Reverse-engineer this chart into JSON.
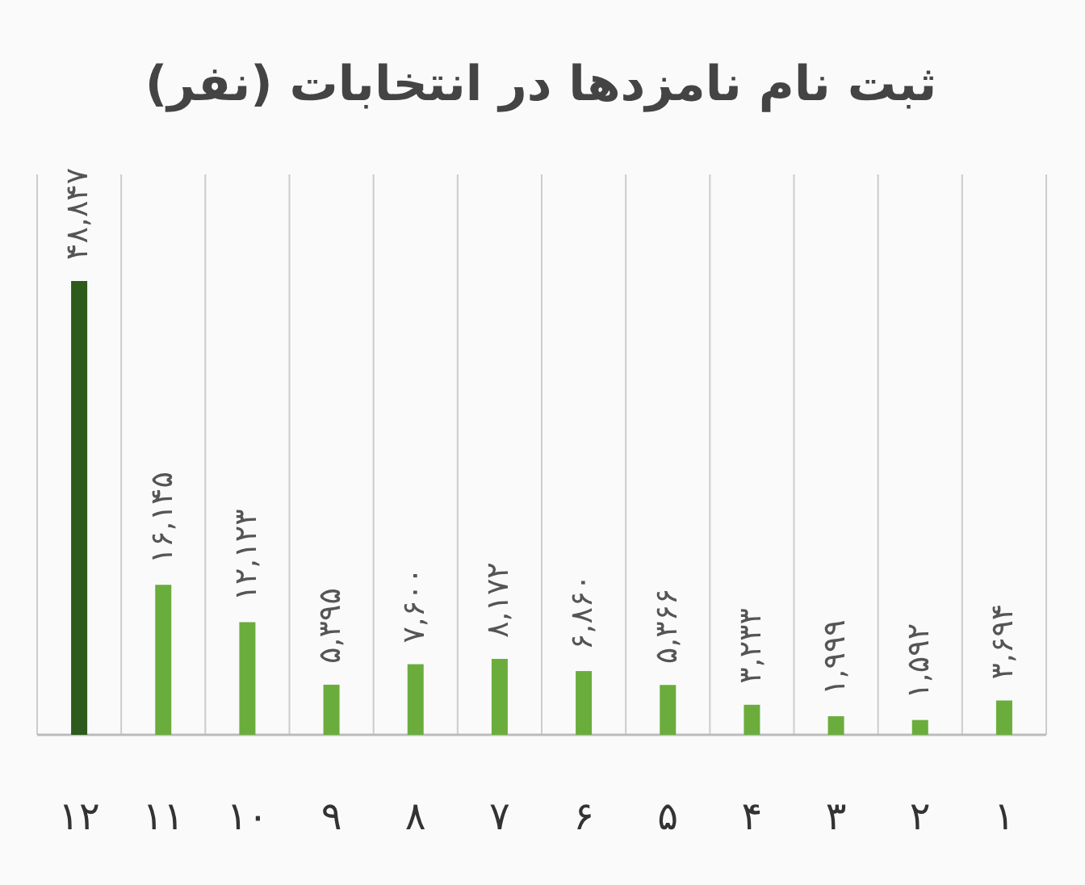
{
  "chart_data": {
    "type": "bar",
    "title": "ثبت نام نامزدها در انتخابات (نفر)",
    "categories": [
      "۱۲",
      "۱۱",
      "۱۰",
      "۹",
      "۸",
      "۷",
      "۶",
      "۵",
      "۴",
      "۳",
      "۲",
      "۱"
    ],
    "values": [
      48847,
      16145,
      12123,
      5395,
      7600,
      8172,
      6860,
      5366,
      3233,
      1999,
      1592,
      3694
    ],
    "colors": [
      "#2e5a1c",
      "#6aad3c",
      "#6aad3c",
      "#6aad3c",
      "#6aad3c",
      "#6aad3c",
      "#6aad3c",
      "#6aad3c",
      "#6aad3c",
      "#6aad3c",
      "#6aad3c",
      "#6aad3c"
    ],
    "value_labels": [
      "۴۸,۸۴۷",
      "۱۶,۱۴۵",
      "۱۲,۱۲۳",
      "۵,۳۹۵",
      "۷,۶۰۰",
      "۸,۱۷۲",
      "۶,۸۶۰",
      "۵,۳۶۶",
      "۳,۲۳۳",
      "۱,۹۹۹",
      "۱,۵۹۲",
      "۳,۶۹۴"
    ],
    "grid": "x",
    "tick_labels": "x"
  }
}
